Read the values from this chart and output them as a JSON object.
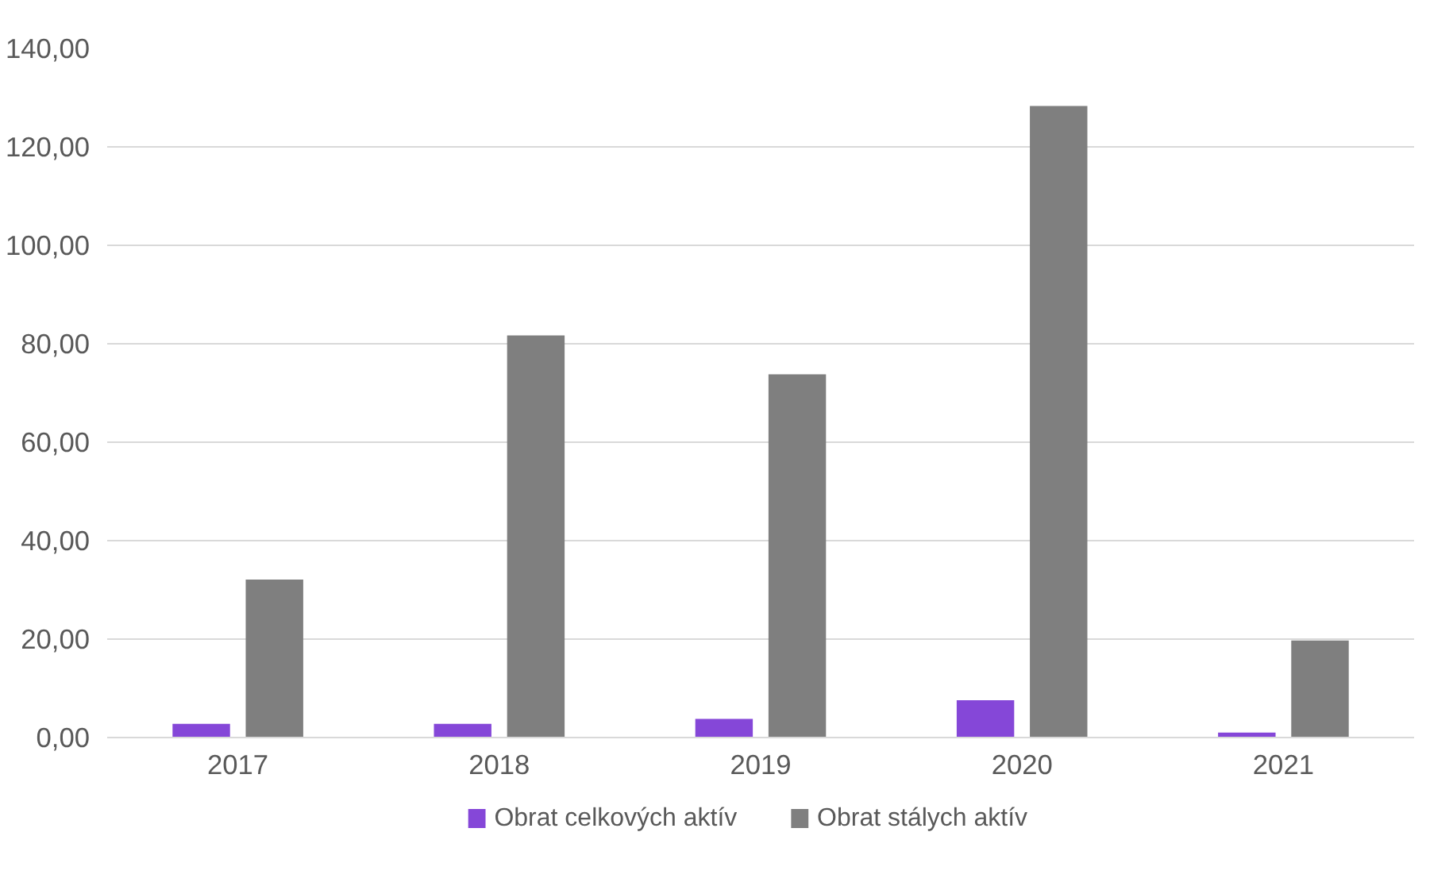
{
  "chart_data": {
    "type": "bar",
    "categories": [
      "2017",
      "2018",
      "2019",
      "2020",
      "2021"
    ],
    "series": [
      {
        "name": "Obrat celkových aktív",
        "color": "#8547d8",
        "values": [
          2.8,
          2.8,
          3.8,
          7.6,
          1.0
        ]
      },
      {
        "name": "Obrat stálych aktív",
        "color": "#7f7f7f",
        "values": [
          32.1,
          81.7,
          73.8,
          128.3,
          19.7
        ]
      }
    ],
    "ylim": [
      0,
      140
    ],
    "yticks": [
      {
        "value": 0,
        "label": "0,00"
      },
      {
        "value": 20,
        "label": "20,00"
      },
      {
        "value": 40,
        "label": "40,00"
      },
      {
        "value": 60,
        "label": "60,00"
      },
      {
        "value": 80,
        "label": "80,00"
      },
      {
        "value": 100,
        "label": "100,00"
      },
      {
        "value": 120,
        "label": "120,00"
      },
      {
        "value": 140,
        "label": "140,00"
      }
    ],
    "grid": "y",
    "legend": "bottom"
  }
}
